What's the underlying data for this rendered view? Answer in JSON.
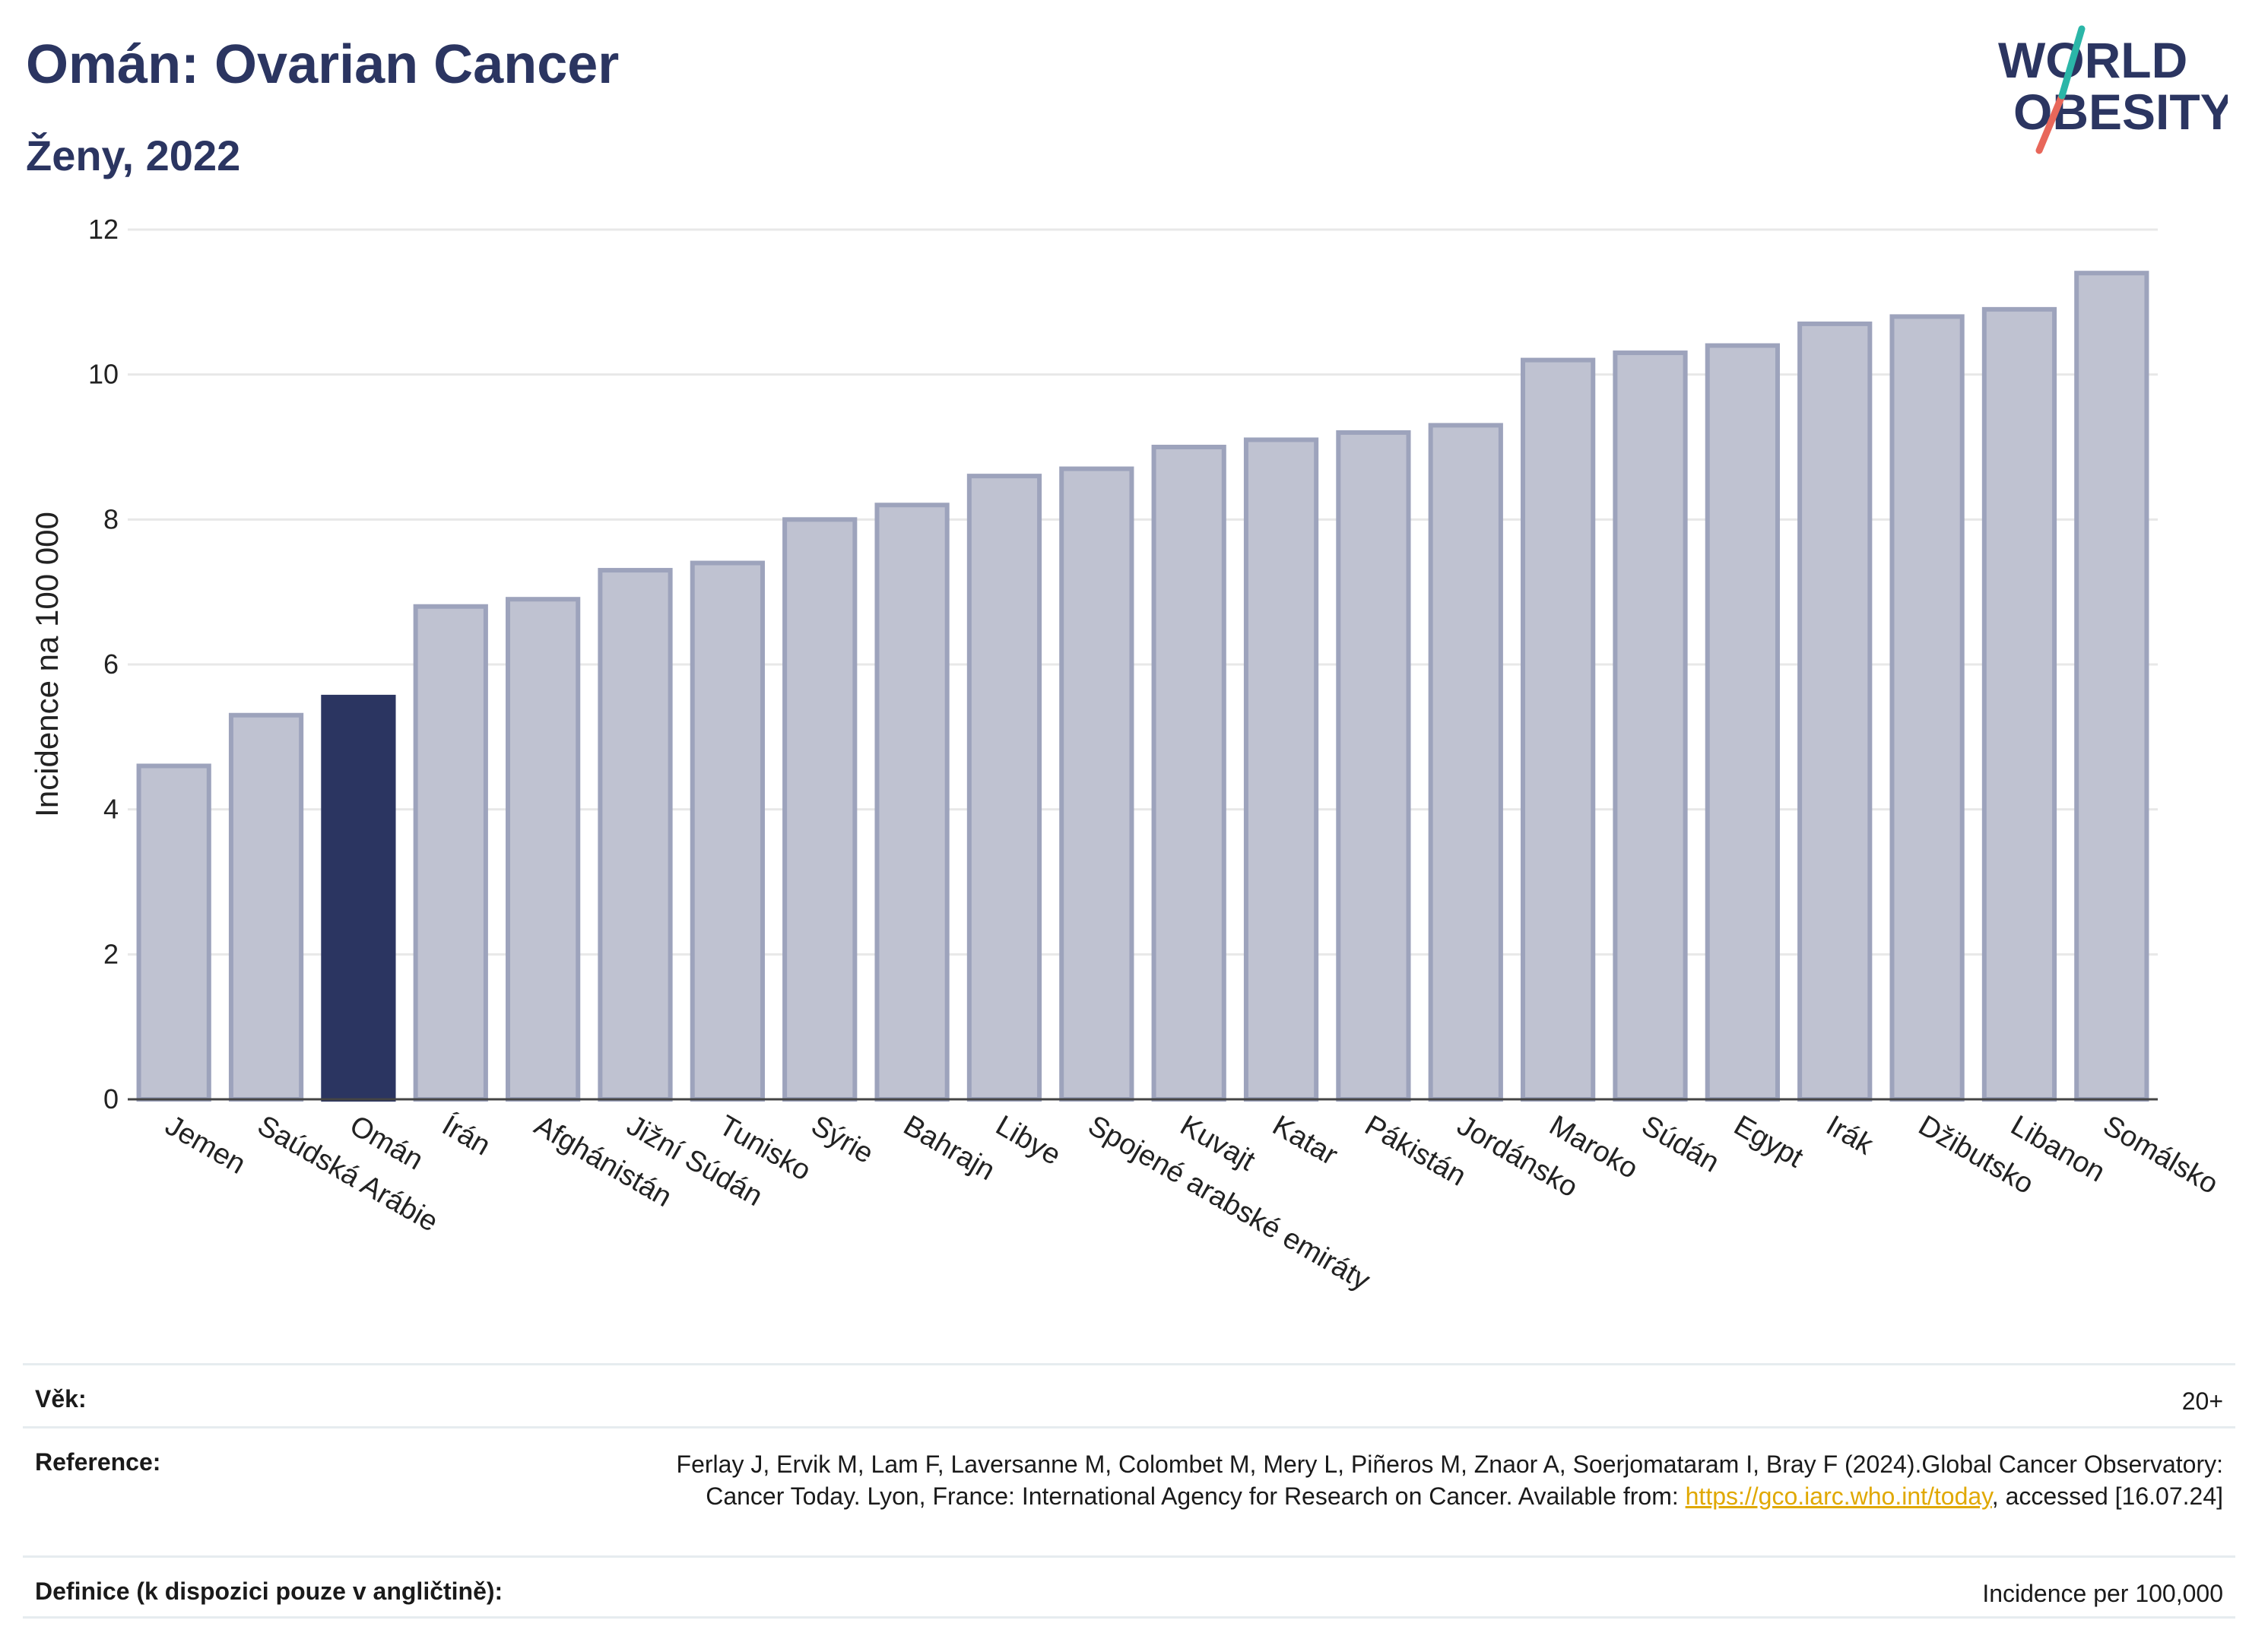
{
  "header": {
    "title": "Omán: Ovarian Cancer",
    "subtitle": "Ženy, 2022"
  },
  "logo": {
    "line1": "WORLD",
    "line2": "OBESITY"
  },
  "chart_data": {
    "type": "bar",
    "ylabel": "Incidence na 100 000",
    "xlabel": "",
    "ylim": [
      0,
      12
    ],
    "yticks": [
      0,
      2,
      4,
      6,
      8,
      10,
      12
    ],
    "grid": true,
    "highlight": "Omán",
    "colors": {
      "bar": "#bfc2d1",
      "bar_edge": "#9da3bc",
      "highlight": "#2b3561",
      "grid": "#e8e8e8"
    },
    "categories": [
      "Jemen",
      "Saúdská Arábie",
      "Omán",
      "Írán",
      "Afghánistán",
      "Jižní Súdán",
      "Tunisko",
      "Sýrie",
      "Bahrajn",
      "Libye",
      "Spojené arabské emiráty",
      "Kuvajt",
      "Katar",
      "Pákistán",
      "Jordánsko",
      "Maroko",
      "Súdán",
      "Egypt",
      "Irák",
      "Džibutsko",
      "Libanon",
      "Somálsko"
    ],
    "values": [
      4.6,
      5.3,
      5.55,
      6.8,
      6.9,
      7.3,
      7.4,
      8.0,
      8.2,
      8.6,
      8.7,
      9.0,
      9.1,
      9.2,
      9.3,
      10.2,
      10.3,
      10.4,
      10.7,
      10.8,
      10.9,
      11.4
    ]
  },
  "meta": {
    "age_label": "Věk:",
    "age_value": "20+",
    "reference_label": "Reference:",
    "reference_text_1": "Ferlay J, Ervik M, Lam F, Laversanne M, Colombet M, Mery L, Piñeros M, Znaor A, Soerjomataram I, Bray F (2024).Global Cancer Observatory: Cancer Today. Lyon, France: International Agency for Research on Cancer. Available from: ",
    "reference_link": "https://gco.iarc.who.int/today",
    "reference_text_2": ", accessed [16.07.24]",
    "definition_label": "Definice (k dispozici pouze v angličtině):",
    "definition_value": "Incidence per 100,000"
  }
}
